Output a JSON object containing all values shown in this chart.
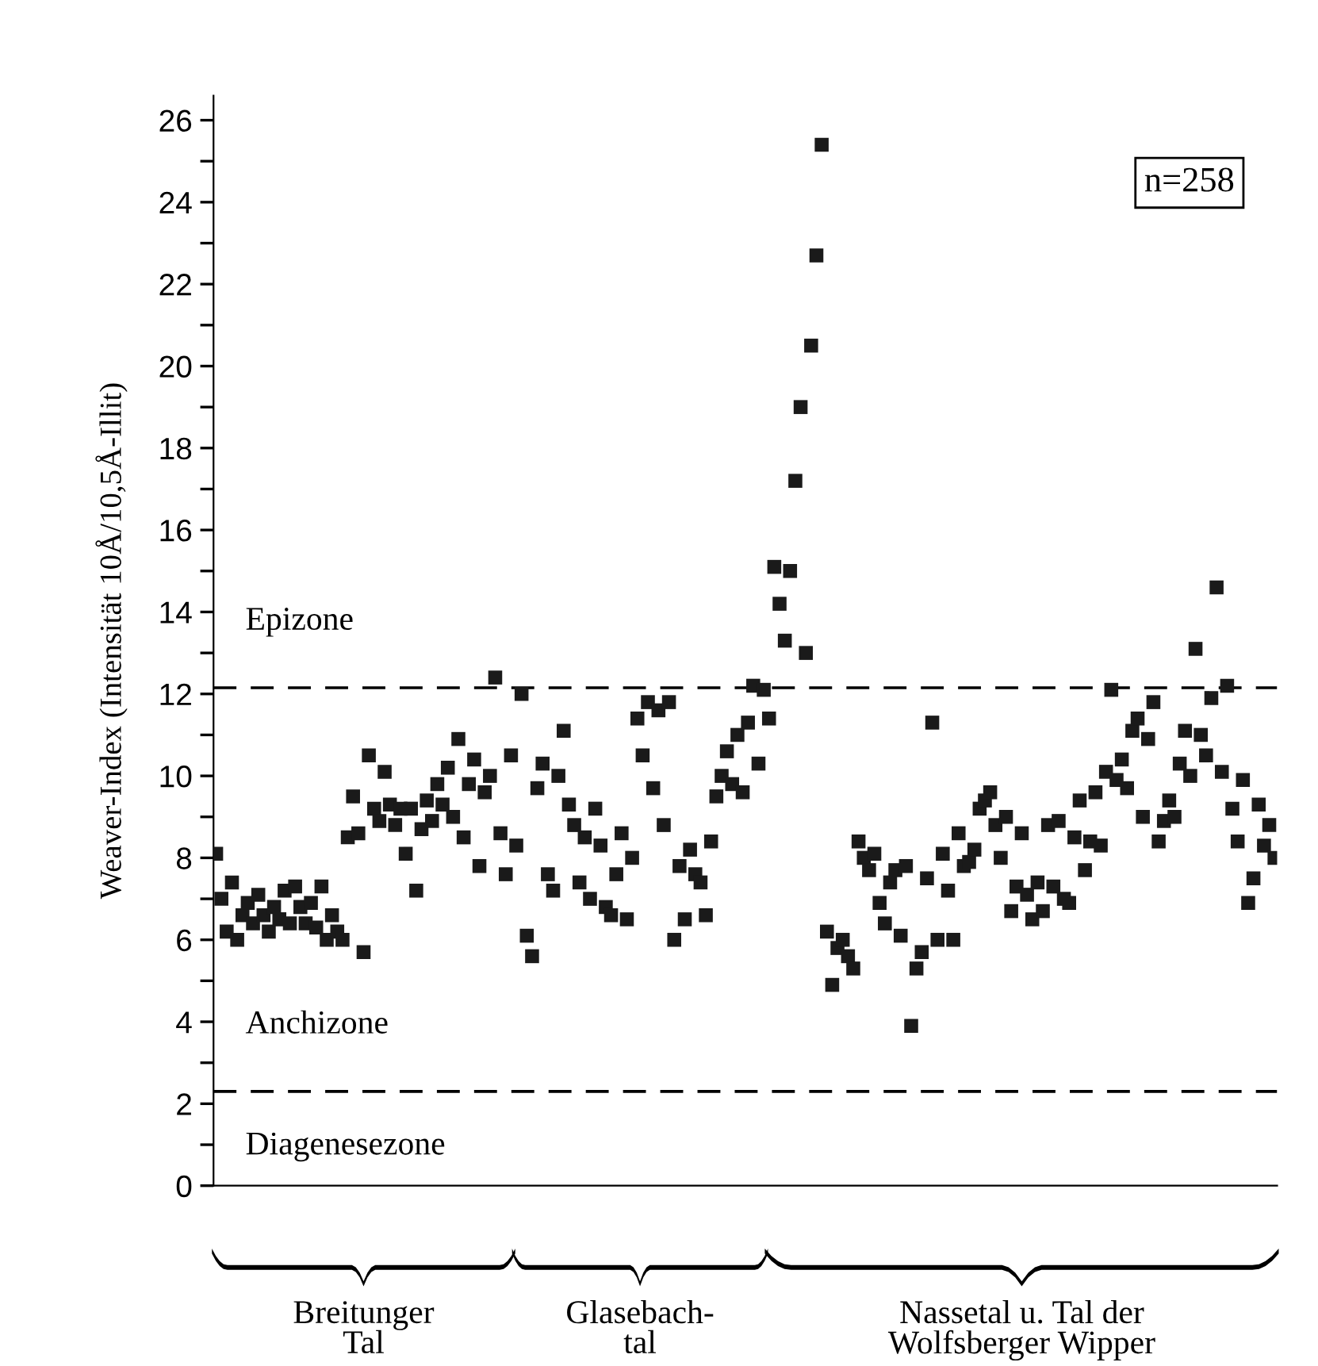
{
  "chart_data": {
    "type": "scatter",
    "ylabel": "Weaver-Index (Intensität 10Å/10,5Å-Illit)",
    "categories": [
      null,
      null,
      null,
      null,
      null,
      null,
      null,
      null,
      null,
      null,
      null,
      null,
      null,
      null,
      null,
      null,
      null,
      null,
      null,
      null,
      null,
      null,
      null,
      null,
      null,
      null,
      null,
      null,
      null,
      null,
      null,
      null,
      null,
      null,
      null,
      null,
      null,
      null,
      null,
      null,
      null,
      null,
      null,
      null,
      null,
      null,
      null,
      null,
      null,
      null,
      null,
      null,
      null,
      null,
      null,
      null,
      null,
      null,
      null,
      null,
      null,
      null,
      null,
      null,
      null,
      null,
      null,
      null,
      null,
      null,
      null,
      null,
      null,
      null,
      null,
      null,
      null,
      null,
      null,
      null,
      null,
      null,
      null,
      null,
      null,
      null,
      null,
      null,
      null,
      null,
      null,
      null,
      null,
      null,
      null,
      null,
      null,
      null,
      null,
      null,
      null,
      null,
      null,
      null,
      null,
      null,
      null,
      null,
      null,
      null,
      null,
      null,
      null,
      null,
      null,
      null,
      null,
      null,
      null,
      null,
      null,
      null,
      null,
      null,
      null,
      null,
      null,
      null,
      null,
      null,
      null,
      null,
      null,
      null,
      null,
      null,
      null,
      null,
      null,
      null,
      null,
      null,
      null,
      null,
      null,
      null,
      null,
      null,
      null,
      null,
      null,
      null,
      null,
      null,
      null,
      null,
      null,
      null,
      null,
      null,
      null,
      null,
      null,
      null,
      null,
      null,
      null,
      null,
      null,
      null,
      null,
      null,
      null,
      null,
      null,
      null,
      null,
      null,
      null,
      null,
      null,
      null,
      null,
      null,
      null,
      null,
      null,
      null,
      null,
      null,
      null,
      null,
      null,
      null,
      null,
      null,
      null,
      null,
      null,
      null,
      null,
      null
    ],
    "ylim": [
      0,
      26.6
    ],
    "yticks": [
      0,
      {
        "value": 1,
        "label": null
      },
      2,
      {
        "value": 3,
        "label": null
      },
      4,
      {
        "value": 5,
        "label": null
      },
      6,
      {
        "value": 7,
        "label": null
      },
      8,
      {
        "value": 9,
        "label": null
      },
      10,
      {
        "value": 11,
        "label": null
      },
      12,
      {
        "value": 13,
        "label": null
      },
      14,
      {
        "value": 15,
        "label": null
      },
      16,
      {
        "value": 17,
        "label": null
      },
      18,
      {
        "value": 19,
        "label": null
      },
      20,
      {
        "value": 21,
        "label": null
      },
      22,
      {
        "value": 23,
        "label": null
      },
      24,
      {
        "value": 25,
        "label": null
      },
      26
    ],
    "grid": false,
    "marker": "square",
    "series": [
      {
        "color": "#1a1a1a",
        "values": [
          8.1,
          7.0,
          6.2,
          7.4,
          6.0,
          6.6,
          6.9,
          6.4,
          7.1,
          6.6,
          6.2,
          6.8,
          6.5,
          7.2,
          6.4,
          7.3,
          6.8,
          6.4,
          6.9,
          6.3,
          7.3,
          6.0,
          6.6,
          6.2,
          6.0,
          8.5,
          9.5,
          8.6,
          5.7,
          10.5,
          9.2,
          8.9,
          10.1,
          9.3,
          8.8,
          9.2,
          8.1,
          9.2,
          7.2,
          8.7,
          9.4,
          8.9,
          9.8,
          9.3,
          10.2,
          9.0,
          10.9,
          8.5,
          9.8,
          10.4,
          7.8,
          9.6,
          10.0,
          12.4,
          8.6,
          7.6,
          10.5,
          null,
          null,
          null,
          null,
          null,
          null,
          null,
          null,
          null,
          null,
          null,
          null,
          null,
          null,
          null,
          null,
          null,
          null,
          null,
          null,
          null,
          null,
          null,
          null,
          null,
          null,
          null,
          null,
          null,
          null,
          null,
          null,
          null,
          null,
          null,
          null,
          null,
          null,
          null,
          null,
          null,
          null,
          null,
          null,
          null,
          null,
          null,
          null,
          null,
          null,
          null,
          null,
          null,
          null,
          null,
          null,
          null,
          null,
          null,
          null,
          null,
          null,
          null,
          null,
          null,
          null,
          null,
          null,
          null,
          null,
          null,
          null,
          null,
          null,
          null,
          null,
          null,
          null,
          null,
          null,
          null,
          null,
          null,
          null,
          null,
          null,
          null,
          null,
          null,
          null,
          null,
          null,
          null,
          null,
          null,
          null,
          null,
          null,
          null,
          null,
          null,
          null,
          null,
          null,
          null,
          null,
          null,
          null,
          null,
          null,
          null,
          null,
          null,
          null,
          null,
          null,
          null,
          null,
          null,
          null,
          null,
          null,
          null,
          null,
          null,
          null,
          null,
          null,
          null,
          null,
          null,
          null,
          null,
          null,
          null,
          null,
          null,
          null,
          null,
          null,
          null,
          null,
          null,
          null,
          null
        ]
      },
      {
        "color": "#1a1a1a",
        "values": [
          null,
          null,
          null,
          null,
          null,
          null,
          null,
          null,
          null,
          null,
          null,
          null,
          null,
          null,
          null,
          null,
          null,
          null,
          null,
          null,
          null,
          null,
          null,
          null,
          null,
          null,
          null,
          null,
          null,
          null,
          null,
          null,
          null,
          null,
          null,
          null,
          null,
          null,
          null,
          null,
          null,
          null,
          null,
          null,
          null,
          null,
          null,
          null,
          null,
          null,
          null,
          null,
          null,
          null,
          null,
          null,
          null,
          8.3,
          12.0,
          6.1,
          5.6,
          9.7,
          10.3,
          7.6,
          7.2,
          10.0,
          11.1,
          9.3,
          8.8,
          7.4,
          8.5,
          7.0,
          9.2,
          8.3,
          6.8,
          6.6,
          7.6,
          8.6,
          6.5,
          8.0,
          11.4,
          10.5,
          11.8,
          9.7,
          11.6,
          8.8,
          11.8,
          6.0,
          7.8,
          6.5,
          8.2,
          7.6,
          7.4,
          6.6,
          8.4,
          9.5,
          10.0,
          10.6,
          9.8,
          11.0,
          9.6,
          11.3,
          12.2,
          10.3,
          12.1,
          null,
          null,
          null,
          null,
          null,
          null,
          null,
          null,
          null,
          null,
          null,
          null,
          null,
          null,
          null,
          null,
          null,
          null,
          null,
          null,
          null,
          null,
          null,
          null,
          null,
          null,
          null,
          null,
          null,
          null,
          null,
          null,
          null,
          null,
          null,
          null,
          null,
          null,
          null,
          null,
          null,
          null,
          null,
          null,
          null,
          null,
          null,
          null,
          null,
          null,
          null,
          null,
          null,
          null,
          null,
          null,
          null,
          null,
          null,
          null,
          null,
          null,
          null,
          null,
          null,
          null,
          null,
          null,
          null,
          null,
          null,
          null,
          null,
          null,
          null,
          null,
          null,
          null,
          null,
          null,
          null,
          null,
          null,
          null,
          null,
          null,
          null,
          null,
          null,
          null,
          null,
          null,
          null,
          null,
          null,
          null,
          null
        ]
      },
      {
        "color": "#1a1a1a",
        "values": [
          null,
          null,
          null,
          null,
          null,
          null,
          null,
          null,
          null,
          null,
          null,
          null,
          null,
          null,
          null,
          null,
          null,
          null,
          null,
          null,
          null,
          null,
          null,
          null,
          null,
          null,
          null,
          null,
          null,
          null,
          null,
          null,
          null,
          null,
          null,
          null,
          null,
          null,
          null,
          null,
          null,
          null,
          null,
          null,
          null,
          null,
          null,
          null,
          null,
          null,
          null,
          null,
          null,
          null,
          null,
          null,
          null,
          null,
          null,
          null,
          null,
          null,
          null,
          null,
          null,
          null,
          null,
          null,
          null,
          null,
          null,
          null,
          null,
          null,
          null,
          null,
          null,
          null,
          null,
          null,
          null,
          null,
          null,
          null,
          null,
          null,
          null,
          null,
          null,
          null,
          null,
          null,
          null,
          null,
          null,
          null,
          null,
          null,
          null,
          null,
          null,
          null,
          null,
          null,
          null,
          11.4,
          15.1,
          14.2,
          13.3,
          15.0,
          17.2,
          19.0,
          13.0,
          20.5,
          22.7,
          25.4,
          6.2,
          4.9,
          5.8,
          6.0,
          5.6,
          5.3,
          8.4,
          8.0,
          7.7,
          8.1,
          6.9,
          6.4,
          7.4,
          7.7,
          6.1,
          7.8,
          3.9,
          5.3,
          5.7,
          7.5,
          11.3,
          6.0,
          8.1,
          7.2,
          6.0,
          8.6,
          7.8,
          7.9,
          8.2,
          9.2,
          9.4,
          9.6,
          8.8,
          8.0,
          9.0,
          6.7,
          7.3,
          8.6,
          7.1,
          6.5,
          7.4,
          6.7,
          8.8,
          7.3,
          8.9,
          7.0,
          6.9,
          8.5,
          9.4,
          7.7,
          8.4,
          9.6,
          8.3,
          10.1,
          12.1,
          9.9,
          10.4,
          9.7,
          11.1,
          11.4,
          9.0,
          10.9,
          11.8,
          8.4,
          8.9,
          9.4,
          9.0,
          10.3,
          11.1,
          10.0,
          13.1,
          11.0,
          10.5,
          11.9,
          14.6,
          10.1,
          12.2,
          9.2,
          8.4,
          9.9,
          6.9,
          7.5,
          9.3,
          8.3,
          8.8,
          8.0
        ]
      }
    ],
    "ref_lines": [
      {
        "axis": "y",
        "value": 12.15,
        "line_style": "dashed",
        "color": "#000000",
        "label": "Epizone"
      },
      {
        "axis": "y",
        "value": 2.3,
        "line_style": "dashed",
        "color": "#000000",
        "label": "Anchizone"
      }
    ],
    "annotations": [
      "Breitunger\nTal",
      "Glasebach-\ntal",
      "Nassetal u. Tal der\nWolfsberger Wipper",
      "n=258",
      "Diagenesezone"
    ]
  }
}
